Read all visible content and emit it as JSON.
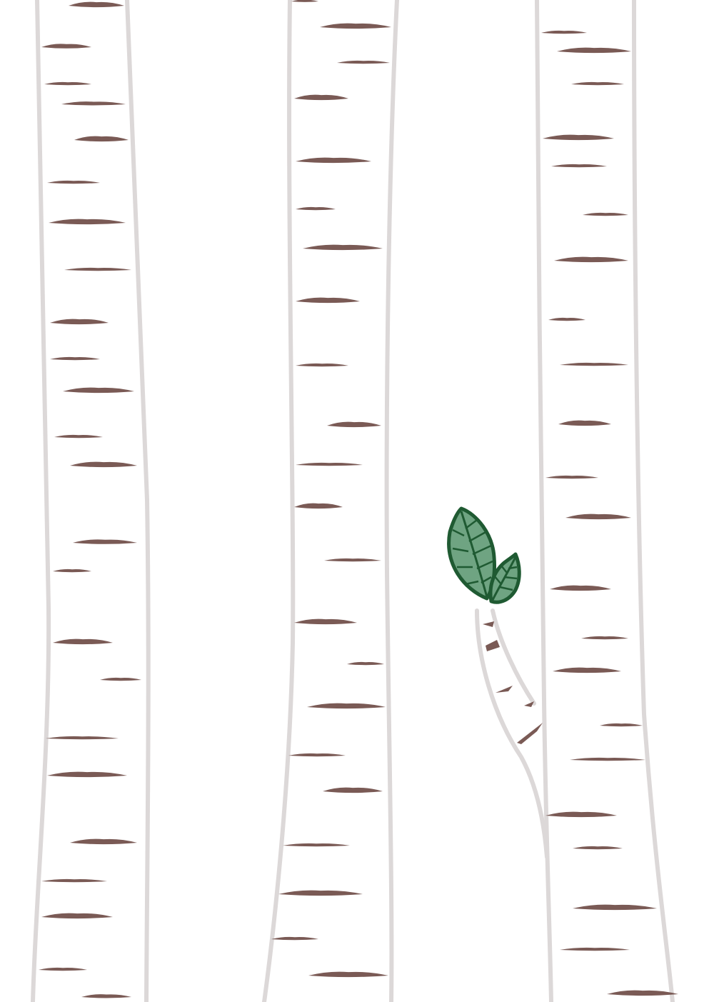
{
  "illustration": {
    "subject": "birch-trees-with-sprouting-leaves",
    "tree_count": 3,
    "leaf_count": 2
  },
  "colors": {
    "background": "#ffffff",
    "bark_outline": "#dcd8d8",
    "bark_mark": "#7a5a55",
    "leaf_fill": "#6fa482",
    "leaf_outline": "#1f5a32"
  }
}
